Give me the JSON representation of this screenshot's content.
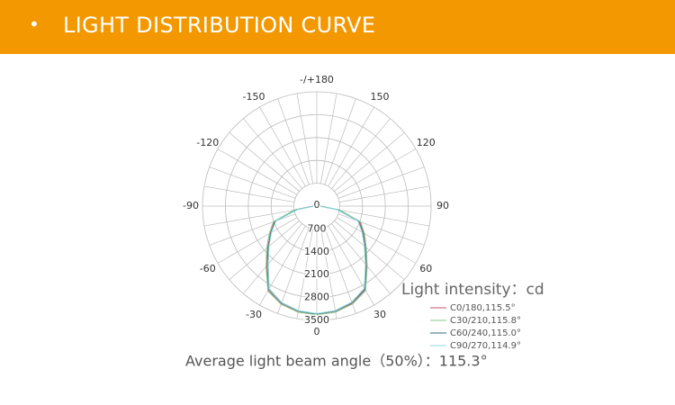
{
  "header": {
    "bullet": "•",
    "title": "LIGHT DISTRIBUTION CURVE"
  },
  "chart_data": {
    "type": "polar",
    "theta": [
      -90,
      -80,
      -70,
      -60,
      -50,
      -40,
      -30,
      -20,
      -10,
      0,
      10,
      20,
      30,
      40,
      50,
      60,
      70,
      80,
      90
    ],
    "series": [
      {
        "name": "C0/180,115.5°",
        "color": "#c4546e",
        "values": [
          120,
          650,
          1380,
          1640,
          1960,
          2380,
          2980,
          3180,
          3290,
          3320,
          3290,
          3170,
          2960,
          2370,
          1940,
          1650,
          1400,
          680,
          110
        ]
      },
      {
        "name": "C30/210,115.8°",
        "color": "#86c98a",
        "values": [
          110,
          700,
          1420,
          1680,
          2000,
          2420,
          3000,
          3200,
          3300,
          3330,
          3300,
          3190,
          2990,
          2400,
          1980,
          1690,
          1430,
          720,
          120
        ]
      },
      {
        "name": "C60/240,115.0°",
        "color": "#2e6e7e",
        "values": [
          100,
          620,
          1350,
          1620,
          1930,
          2330,
          2940,
          3150,
          3260,
          3300,
          3260,
          3140,
          2930,
          2340,
          1920,
          1620,
          1360,
          640,
          100
        ]
      },
      {
        "name": "C90/270,114.9°",
        "color": "#8cdbe0",
        "values": [
          90,
          600,
          1330,
          1600,
          1910,
          2310,
          2920,
          3140,
          3250,
          3290,
          3250,
          3130,
          2910,
          2320,
          1900,
          1600,
          1340,
          620,
          90
        ]
      }
    ],
    "rlim": [
      0,
      3500
    ],
    "rticks": [
      0,
      700,
      1400,
      2100,
      2800,
      3500
    ],
    "thetaticks": [
      0,
      30,
      60,
      90,
      120,
      150,
      {
        "value": 180,
        "label": "-/+180"
      },
      -150,
      -120,
      -90,
      -60,
      -30
    ],
    "legend_title": "Light intensity：cd",
    "note": "Average light beam angle（50%）：115.3°"
  }
}
